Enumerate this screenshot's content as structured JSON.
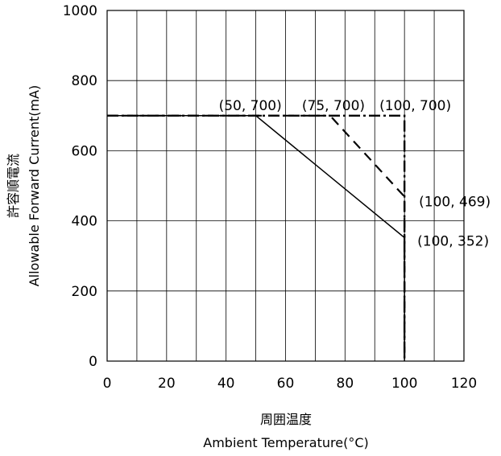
{
  "chart_data": {
    "type": "line",
    "xlabel_ja": "周囲温度",
    "xlabel": "Ambient Temperature(°C)",
    "ylabel_ja": "許容順電流",
    "ylabel": "Allowable Forward Current(mA)",
    "xlim": [
      0,
      120
    ],
    "ylim": [
      0,
      1000
    ],
    "x_ticks": [
      0,
      20,
      40,
      60,
      80,
      100,
      120
    ],
    "y_ticks": [
      0,
      200,
      400,
      600,
      800,
      1000
    ],
    "x_gridlines": [
      0,
      10,
      20,
      30,
      40,
      50,
      60,
      70,
      80,
      90,
      100,
      110,
      120
    ],
    "y_gridlines": [
      0,
      200,
      400,
      600,
      800,
      1000
    ],
    "grid": true,
    "series": [
      {
        "style": "solid",
        "points": [
          [
            0,
            700
          ],
          [
            50,
            700
          ],
          [
            100,
            352
          ],
          [
            100,
            0
          ]
        ]
      },
      {
        "style": "dashed",
        "points": [
          [
            0,
            700
          ],
          [
            75,
            700
          ],
          [
            100,
            469
          ],
          [
            100,
            0
          ]
        ]
      },
      {
        "style": "dash-dot",
        "points": [
          [
            0,
            700
          ],
          [
            100,
            700
          ],
          [
            100,
            0
          ]
        ]
      }
    ],
    "annotations": [
      {
        "text": "(50, 700)",
        "x": 50,
        "y": 700
      },
      {
        "text": "(75, 700)",
        "x": 75,
        "y": 700
      },
      {
        "text": "(100, 700)",
        "x": 100,
        "y": 700
      },
      {
        "text": "(100, 469)",
        "x": 100,
        "y": 469
      },
      {
        "text": "(100, 352)",
        "x": 100,
        "y": 352
      }
    ]
  }
}
